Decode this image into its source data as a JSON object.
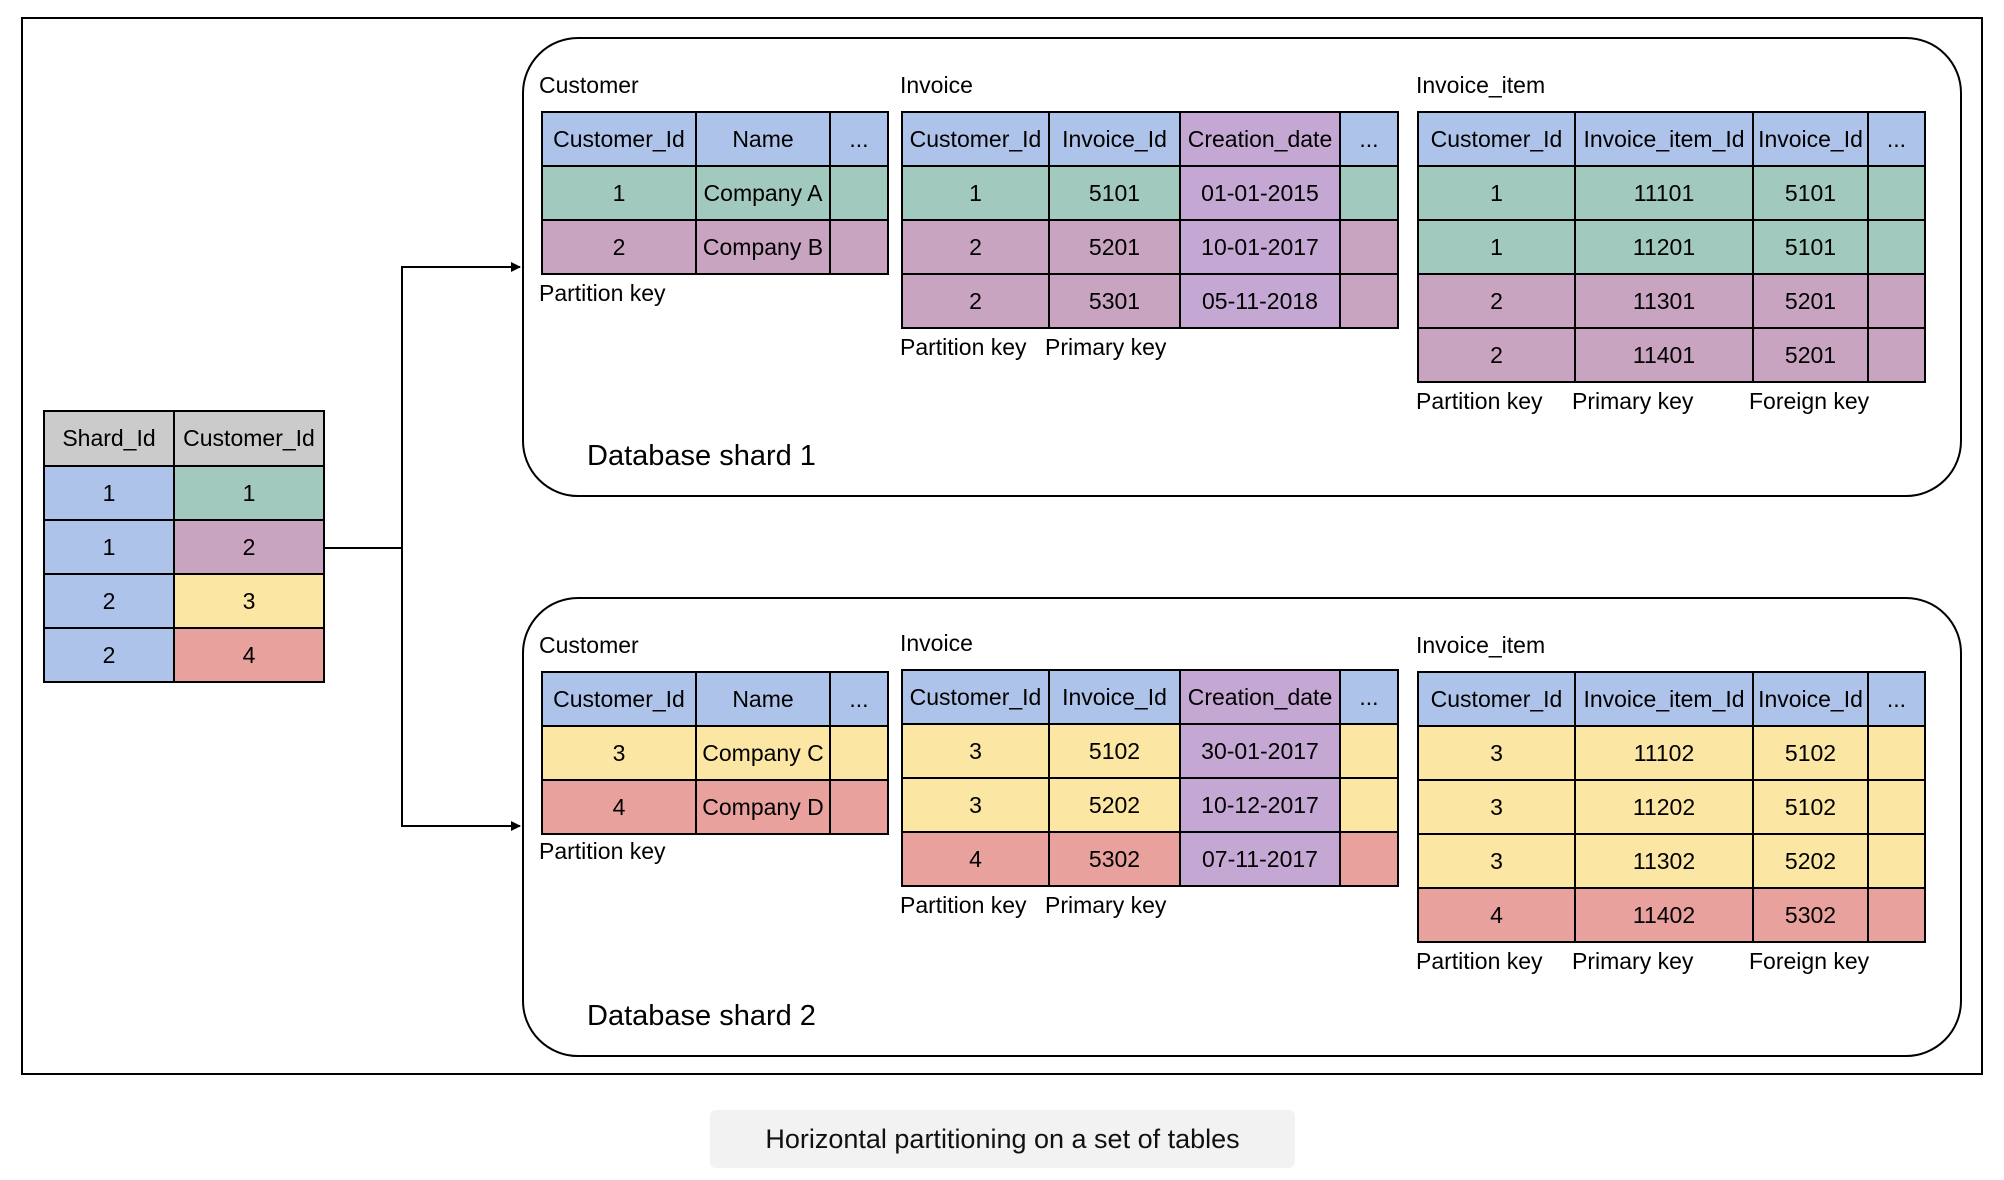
{
  "caption": "Horizontal partitioning on a set of tables",
  "lookup": {
    "headers": [
      "Shard_Id",
      "Customer_Id"
    ],
    "rows": [
      [
        "1",
        "1"
      ],
      [
        "1",
        "2"
      ],
      [
        "2",
        "3"
      ],
      [
        "2",
        "4"
      ]
    ]
  },
  "shards": [
    {
      "title": "Database shard 1",
      "customer": {
        "name": "Customer",
        "headers": [
          "Customer_Id",
          "Name",
          "..."
        ],
        "rows": [
          [
            "1",
            "Company A",
            ""
          ],
          [
            "2",
            "Company B",
            ""
          ]
        ],
        "keys": [
          "Partition key"
        ]
      },
      "invoice": {
        "name": "Invoice",
        "headers": [
          "Customer_Id",
          "Invoice_Id",
          "Creation_date",
          "..."
        ],
        "rows": [
          [
            "1",
            "5101",
            "01-01-2015",
            ""
          ],
          [
            "2",
            "5201",
            "10-01-2017",
            ""
          ],
          [
            "2",
            "5301",
            "05-11-2018",
            ""
          ]
        ],
        "keys": [
          "Partition key",
          "Primary key"
        ]
      },
      "invoice_item": {
        "name": "Invoice_item",
        "headers": [
          "Customer_Id",
          "Invoice_item_Id",
          "Invoice_Id",
          "..."
        ],
        "rows": [
          [
            "1",
            "11101",
            "5101",
            ""
          ],
          [
            "1",
            "11201",
            "5101",
            ""
          ],
          [
            "2",
            "11301",
            "5201",
            ""
          ],
          [
            "2",
            "11401",
            "5201",
            ""
          ]
        ],
        "keys": [
          "Partition key",
          "Primary key",
          "Foreign key"
        ]
      }
    },
    {
      "title": "Database shard 2",
      "customer": {
        "name": "Customer",
        "headers": [
          "Customer_Id",
          "Name",
          "..."
        ],
        "rows": [
          [
            "3",
            "Company C",
            ""
          ],
          [
            "4",
            "Company D",
            ""
          ]
        ],
        "keys": [
          "Partition key"
        ]
      },
      "invoice": {
        "name": "Invoice",
        "headers": [
          "Customer_Id",
          "Invoice_Id",
          "Creation_date",
          "..."
        ],
        "rows": [
          [
            "3",
            "5102",
            "30-01-2017",
            ""
          ],
          [
            "3",
            "5202",
            "10-12-2017",
            ""
          ],
          [
            "4",
            "5302",
            "07-11-2017",
            ""
          ]
        ],
        "keys": [
          "Partition key",
          "Primary key"
        ]
      },
      "invoice_item": {
        "name": "Invoice_item",
        "headers": [
          "Customer_Id",
          "Invoice_item_Id",
          "Invoice_Id",
          "..."
        ],
        "rows": [
          [
            "3",
            "11102",
            "5102",
            ""
          ],
          [
            "3",
            "11202",
            "5102",
            ""
          ],
          [
            "3",
            "11302",
            "5202",
            ""
          ],
          [
            "4",
            "11402",
            "5302",
            ""
          ]
        ],
        "keys": [
          "Partition key",
          "Primary key",
          "Foreign key"
        ]
      }
    }
  ],
  "colors": {
    "header": "#aec3ea",
    "lookup_header": "#cbcbcb",
    "customer_1": "#a2c9bd",
    "customer_2": "#c8a4c1",
    "customer_3": "#fbe6a3",
    "customer_4": "#e8a19c",
    "creation_date": "#c4a7d2"
  }
}
